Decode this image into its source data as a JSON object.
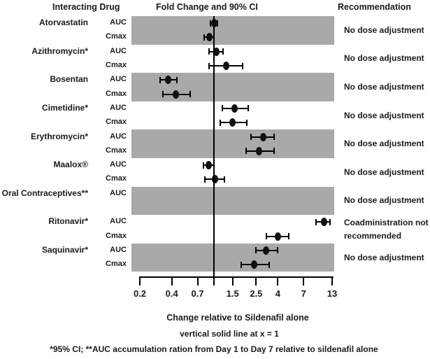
{
  "header": {
    "interacting_drug": "Interacting Drug",
    "fold_change": "Fold Change and 90% CI",
    "recommendation": "Recommendation"
  },
  "colors": {
    "band_gray": "#a9a9a9",
    "marker_black": "#111111",
    "text": "#1a1a1a"
  },
  "chart_data": {
    "type": "scatter",
    "subtype": "forest-plot",
    "title": "Fold Change and 90% CI",
    "xlabel": "Change relative to Sildenafil alone",
    "xlabel_note": "vertical solid line at x = 1",
    "footnote": "*95% CI; **AUC accumulation ration from Day 1 to Day 7 relative to sildenafil alone",
    "x_scale": "log",
    "x_range": [
      0.2,
      13
    ],
    "reference_line_x": 1,
    "x_ticks": [
      {
        "label": "0.2",
        "value": 0.2
      },
      {
        "label": "0.4",
        "value": 0.4
      },
      {
        "label": "0.7",
        "value": 0.7
      },
      {
        "label": "",
        "value": 1
      },
      {
        "label": "1.5",
        "value": 1.5
      },
      {
        "label": "2.5",
        "value": 2.5
      },
      {
        "label": "4",
        "value": 4
      },
      {
        "label": "7",
        "value": 7
      },
      {
        "label": "13",
        "value": 13
      }
    ],
    "groups": [
      {
        "drug": "Atorvastatin",
        "shaded": true,
        "recommendation": "No dose adjustment",
        "rows": [
          {
            "param": "AUC",
            "value": 1.0,
            "lo": 0.92,
            "hi": 1.08
          },
          {
            "param": "Cmax",
            "value": 0.9,
            "lo": 0.81,
            "hi": 1.0
          }
        ]
      },
      {
        "drug": "Azithromycin*",
        "shaded": false,
        "recommendation": "No dose adjustment",
        "rows": [
          {
            "param": "AUC",
            "value": 1.05,
            "lo": 0.9,
            "hi": 1.22
          },
          {
            "param": "Cmax",
            "value": 1.3,
            "lo": 0.9,
            "hi": 1.85
          }
        ]
      },
      {
        "drug": "Bosentan",
        "shaded": true,
        "recommendation": "No dose adjustment",
        "rows": [
          {
            "param": "AUC",
            "value": 0.37,
            "lo": 0.31,
            "hi": 0.45
          },
          {
            "param": "Cmax",
            "value": 0.44,
            "lo": 0.33,
            "hi": 0.6
          }
        ]
      },
      {
        "drug": "Cimetidine*",
        "shaded": false,
        "recommendation": "No dose adjustment",
        "rows": [
          {
            "param": "AUC",
            "value": 1.56,
            "lo": 1.2,
            "hi": 2.1
          },
          {
            "param": "Cmax",
            "value": 1.5,
            "lo": 1.14,
            "hi": 2.04
          }
        ]
      },
      {
        "drug": "Erythromycin*",
        "shaded": true,
        "recommendation": "No dose adjustment",
        "rows": [
          {
            "param": "AUC",
            "value": 2.9,
            "lo": 2.25,
            "hi": 3.7
          },
          {
            "param": "Cmax",
            "value": 2.65,
            "lo": 2.0,
            "hi": 3.7
          }
        ]
      },
      {
        "drug": "Maalox®",
        "shaded": false,
        "recommendation": "No dose adjustment",
        "rows": [
          {
            "param": "AUC",
            "value": 0.89,
            "lo": 0.8,
            "hi": 1.0
          },
          {
            "param": "Cmax",
            "value": 1.02,
            "lo": 0.82,
            "hi": 1.26
          }
        ]
      },
      {
        "drug": "Oral Contraceptives**",
        "shaded": true,
        "recommendation": "No dose adjustment",
        "rows": [
          {
            "param": "AUC",
            "value": null,
            "lo": null,
            "hi": null
          }
        ]
      },
      {
        "drug": "Ritonavir*",
        "shaded": false,
        "recommendation": "Coadministration not recommended",
        "rows": [
          {
            "param": "AUC",
            "value": 11.0,
            "lo": 9.2,
            "hi": 12.5
          },
          {
            "param": "Cmax",
            "value": 4.0,
            "lo": 3.1,
            "hi": 5.1
          }
        ]
      },
      {
        "drug": "Saquinavir*",
        "shaded": true,
        "recommendation": "No dose adjustment",
        "rows": [
          {
            "param": "AUC",
            "value": 3.1,
            "lo": 2.5,
            "hi": 4.0
          },
          {
            "param": "Cmax",
            "value": 2.4,
            "lo": 1.8,
            "hi": 3.3
          }
        ]
      }
    ]
  }
}
